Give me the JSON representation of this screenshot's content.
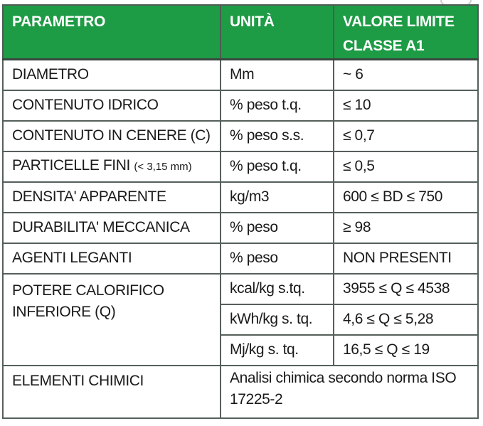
{
  "table": {
    "headers": [
      "PARAMETRO",
      "UNITÀ",
      "VALORE LIMITE CLASSE A1"
    ],
    "header_colors": {
      "background": "#1e9b45",
      "text": "#ffffff",
      "grid": "#55605a"
    },
    "rows": [
      {
        "param": "DIAMETRO",
        "unit": "Mm",
        "value": "~ 6"
      },
      {
        "param": "CONTENUTO IDRICO",
        "unit": "% peso t.q.",
        "value": "≤ 10"
      },
      {
        "param": "CONTENUTO IN CENERE (C)",
        "unit": "% peso s.s.",
        "value": "≤ 0,7"
      },
      {
        "param": "PARTICELLE FINI",
        "param_note": "(< 3,15 mm)",
        "unit": "% peso t.q.",
        "value": "≤ 0,5"
      },
      {
        "param": "DENSITA' APPARENTE",
        "unit": "kg/m3",
        "value": "600 ≤ BD ≤ 750"
      },
      {
        "param": "DURABILITA' MECCANICA",
        "unit": "% peso",
        "value": "≥ 98"
      },
      {
        "param": "AGENTI LEGANTI",
        "unit": "% peso",
        "value": "NON PRESENTI"
      }
    ],
    "calorific": {
      "param": "POTERE CALORIFICO INFERIORE (Q)",
      "units": [
        "kcal/kg s.tq.",
        "kWh/kg s. tq.",
        "Mj/kg s. tq."
      ],
      "values": [
        "3955 ≤ Q ≤ 4538",
        "4,6 ≤ Q ≤ 5,28",
        "16,5 ≤ Q ≤ 19"
      ]
    },
    "chemical": {
      "param": "ELEMENTI CHIMICI",
      "value": "Analisi chimica secondo norma ISO 17225-2"
    }
  }
}
